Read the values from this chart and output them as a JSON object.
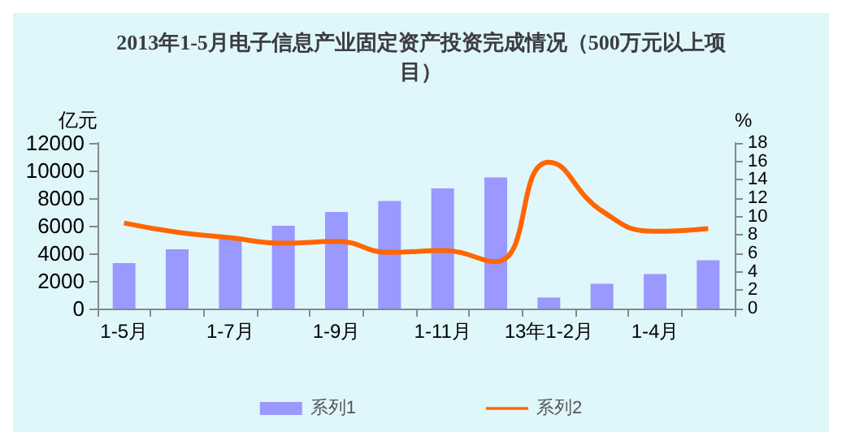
{
  "chart_data": {
    "type": "bar",
    "title": "2013年1-5月电子信息产业固定资产投资完成情况（500万元以上项目）",
    "ylabel": "亿元",
    "y2label": "%",
    "categories": [
      "1-5月",
      null,
      "1-7月",
      null,
      "1-9月",
      null,
      "1-11月",
      null,
      "13年1-2月",
      null,
      "1-4月",
      null
    ],
    "series": [
      {
        "name": "系列1",
        "color": "#9999ff",
        "values": [
          3300,
          4300,
          5100,
          6000,
          7000,
          7800,
          8700,
          9500,
          800,
          1800,
          2500,
          3500
        ]
      },
      {
        "name": "系列2",
        "type": "line",
        "axis": "y2",
        "color": "#ff6600",
        "values": [
          9.3,
          8.3,
          7.7,
          7.1,
          7.3,
          6.1,
          6.3,
          5.1,
          15.9,
          10.6,
          8.4,
          8.7
        ]
      }
    ],
    "ylim": [
      0,
      12000
    ],
    "yticks": [
      0,
      2000,
      4000,
      6000,
      8000,
      10000,
      12000
    ],
    "y2lim": [
      0,
      18
    ],
    "y2ticks": [
      0,
      2,
      4,
      6,
      8,
      10,
      12,
      14,
      16,
      18
    ],
    "legend": "bottom",
    "grid": false,
    "marker": "none"
  }
}
